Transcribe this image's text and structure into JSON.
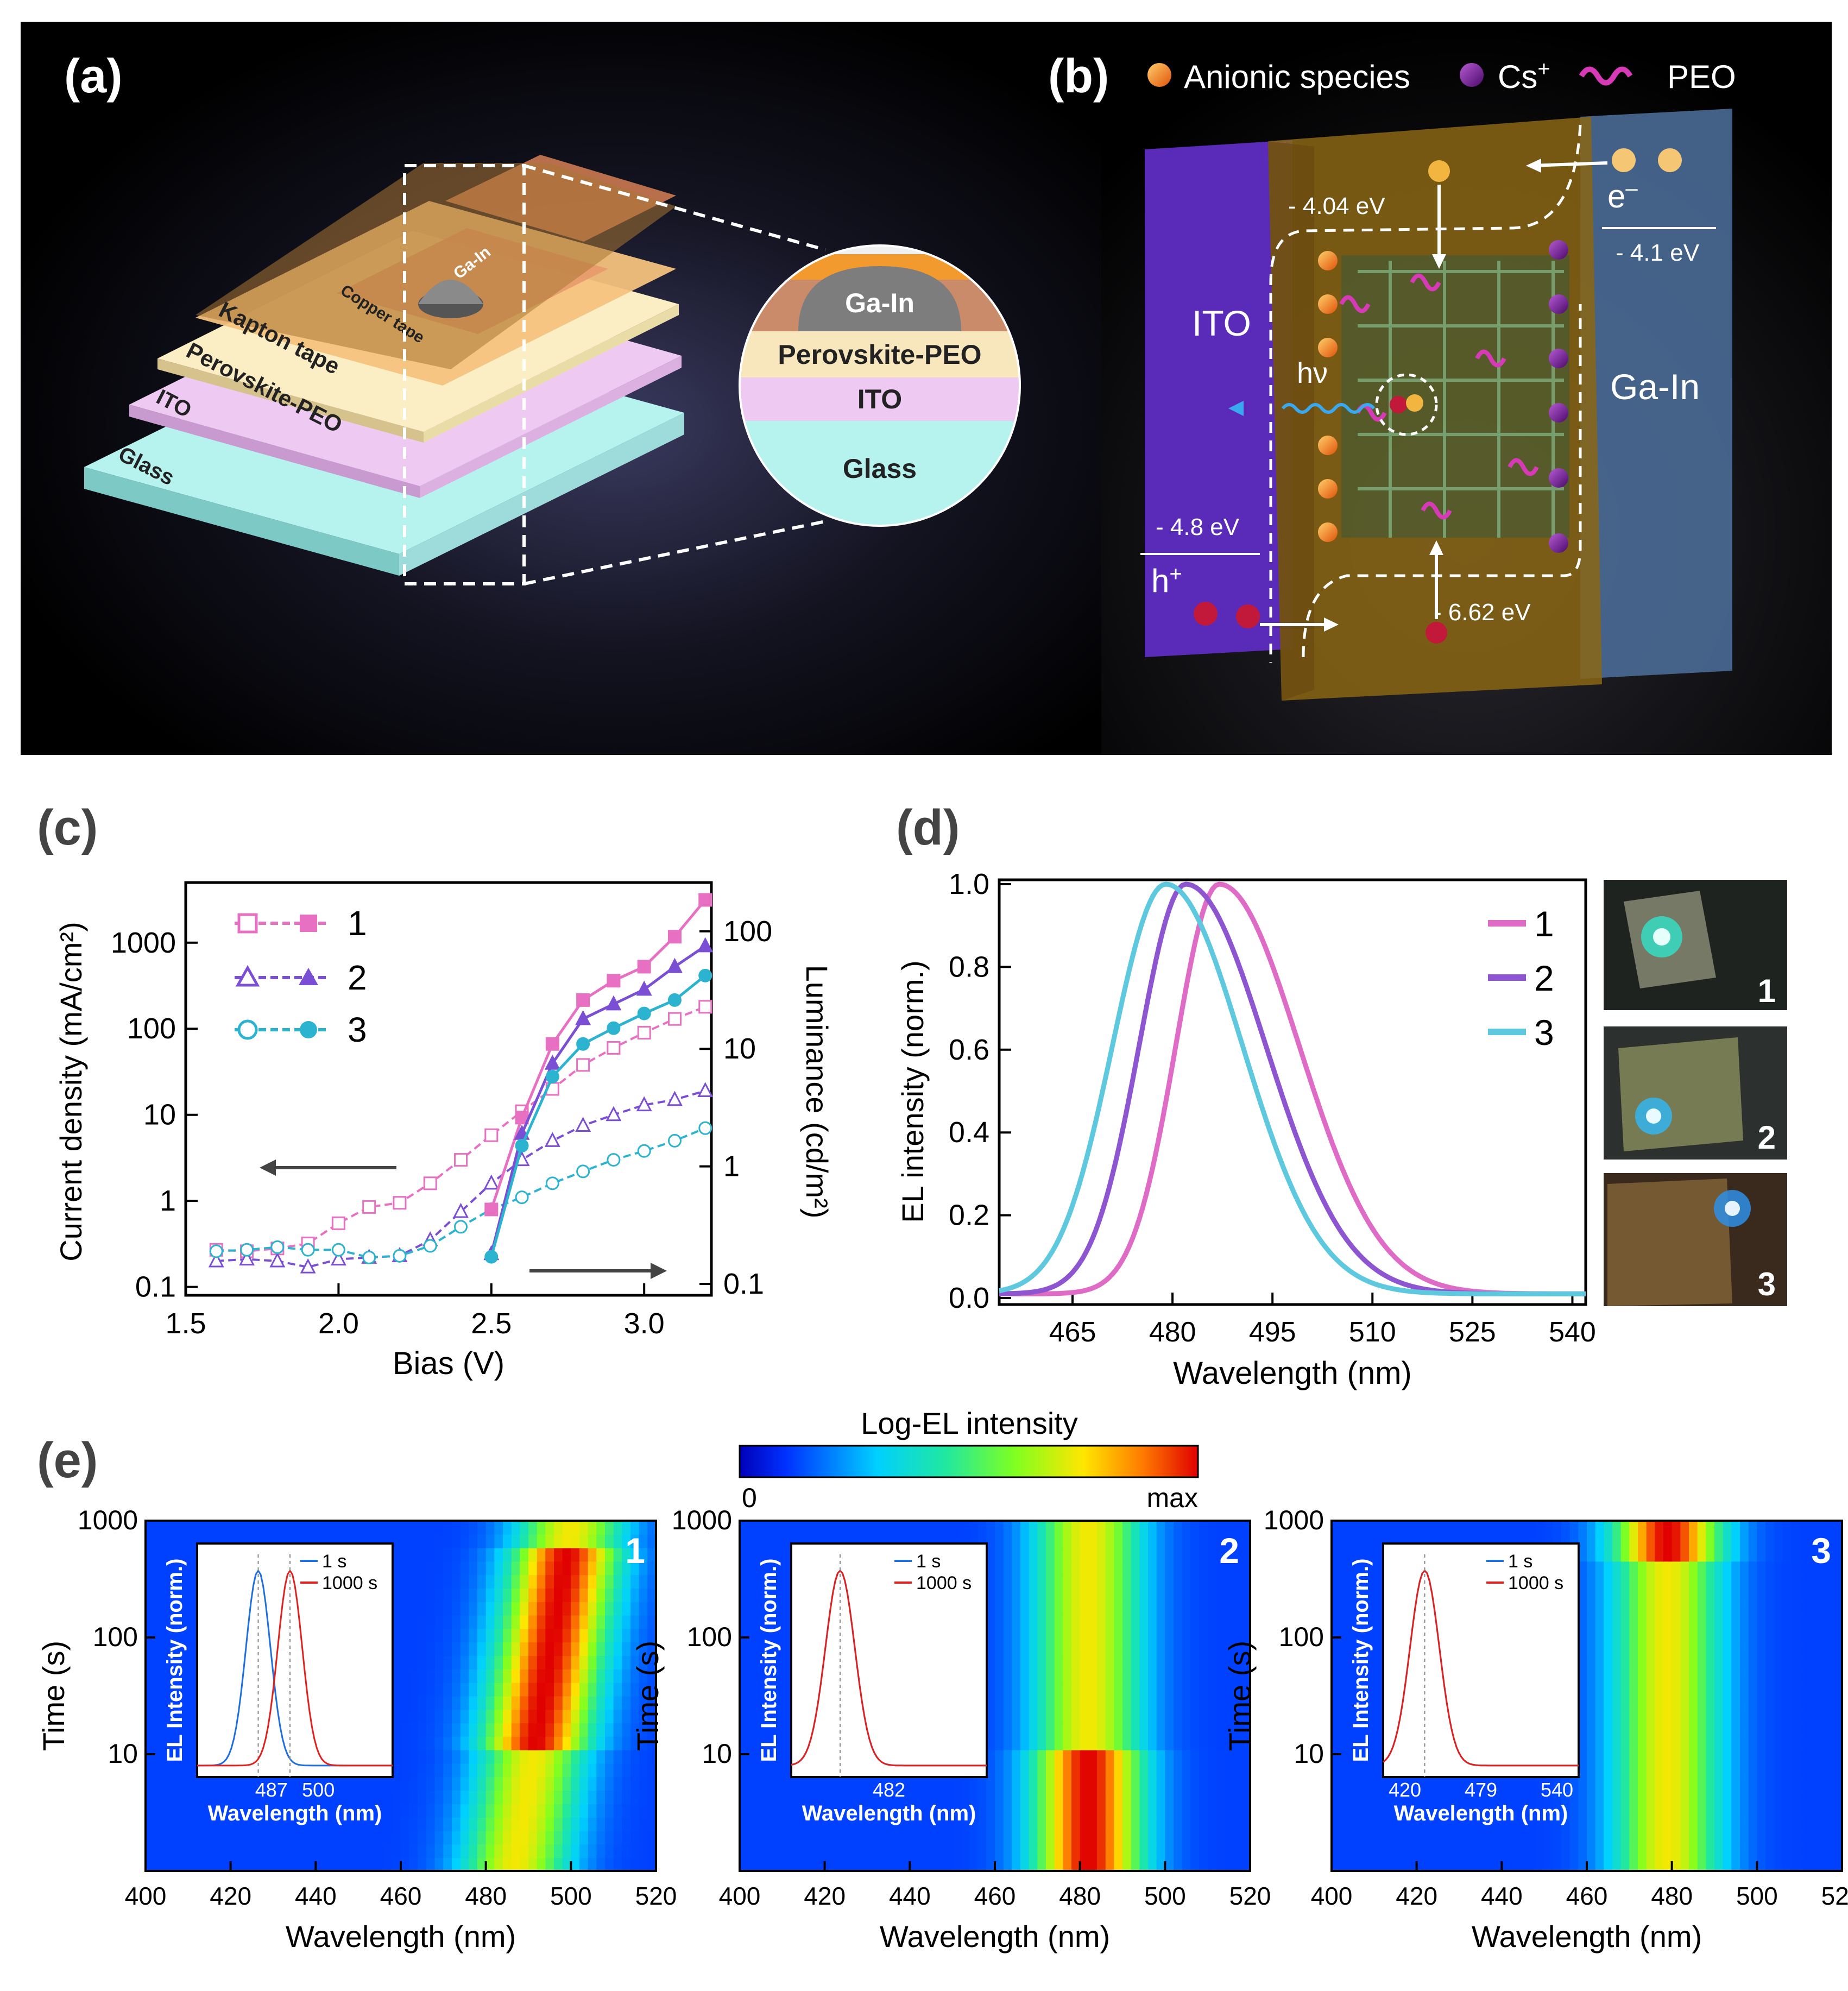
{
  "panels": {
    "a": {
      "label": "(a)",
      "layers": [
        "Glass",
        "ITO",
        "Perovskite-PEO",
        "Kapton tape",
        "Copper tape"
      ],
      "contact": "Ga-In",
      "zoom_layers": [
        "Ga-In",
        "Perovskite-PEO",
        "ITO",
        "Glass"
      ]
    },
    "b": {
      "label": "(b)",
      "legend": {
        "anionic": "Anionic species",
        "cs": "Cs",
        "cs_sup": "+",
        "peo": "PEO"
      },
      "ito": "ITO",
      "gain": "Ga-In",
      "lumo": "- 4.04 eV",
      "homo": "- 6.62 eV",
      "ito_wf": "- 4.8 eV",
      "gain_wf": "- 4.1 eV",
      "electron": "e",
      "electron_sup": "–",
      "hole": "h",
      "hole_sup": "+",
      "photon": "hν"
    },
    "c": {
      "label": "(c)"
    },
    "d": {
      "label": "(d)",
      "photo_labels": [
        "1",
        "2",
        "3"
      ]
    },
    "e": {
      "label": "(e)",
      "colorbar": {
        "title": "Log-EL intensity",
        "min": "0",
        "max": "max"
      },
      "maps": [
        {
          "id": "1",
          "inset_ticks": [
            "487",
            "500"
          ],
          "legend": [
            "1 s",
            "1000 s"
          ]
        },
        {
          "id": "2",
          "inset_ticks": [
            "482"
          ],
          "legend": [
            "1 s",
            "1000 s"
          ]
        },
        {
          "id": "3",
          "inset_ticks": [
            "420",
            "479",
            "540"
          ],
          "legend": [
            "1 s",
            "1000 s"
          ]
        }
      ],
      "inset_ylabel": "EL Intensity (norm.)",
      "inset_xlabel": "Wavelength (nm)",
      "xlabel": "Wavelength (nm)",
      "ylabel": "Time (s)",
      "xticks": [
        "400",
        "420",
        "440",
        "460",
        "480",
        "500",
        "520"
      ],
      "yticks": [
        "1000",
        "100",
        "10"
      ]
    }
  },
  "chart_data": [
    {
      "id": "c",
      "type": "line",
      "xlabel": "Bias (V)",
      "ylabel": "Current density (mA/cm²)",
      "y2label": "Luminance (cd/m²)",
      "xlim": [
        1.5,
        3.22
      ],
      "ylim": [
        0.08,
        5000
      ],
      "y2lim": [
        0.08,
        260
      ],
      "xticks": [
        "1.5",
        "2.0",
        "2.5",
        "3.0"
      ],
      "yticks": [
        "0.1",
        "1",
        "10",
        "100",
        "1000"
      ],
      "y2ticks": [
        "0.1",
        "1",
        "10",
        "100"
      ],
      "legend": [
        "1",
        "2",
        "3"
      ],
      "colors": [
        "#e870c2",
        "#7b4fd3",
        "#2cb3cf"
      ],
      "current_x": [
        1.6,
        1.7,
        1.8,
        1.9,
        2.0,
        2.1,
        2.2,
        2.3,
        2.4,
        2.5,
        2.6,
        2.7,
        2.8,
        2.9,
        3.0,
        3.1,
        3.2
      ],
      "current": [
        [
          0.27,
          0.26,
          0.28,
          0.32,
          0.55,
          0.85,
          0.95,
          1.6,
          3.0,
          5.8,
          11,
          20,
          38,
          60,
          90,
          130,
          180
        ],
        [
          0.2,
          0.21,
          0.2,
          0.17,
          0.21,
          0.22,
          0.23,
          0.35,
          0.75,
          1.6,
          3.0,
          5.0,
          7.5,
          10,
          13,
          15,
          19
        ],
        [
          0.26,
          0.27,
          0.29,
          0.27,
          0.27,
          0.22,
          0.23,
          0.3,
          0.5,
          0.8,
          1.1,
          1.6,
          2.2,
          3.0,
          3.8,
          5.0,
          7.0
        ]
      ],
      "luminance_x": [
        2.5,
        2.6,
        2.7,
        2.8,
        2.9,
        3.0,
        3.1,
        3.2
      ],
      "luminance": [
        [
          0.43,
          2.6,
          11.0,
          26,
          38,
          50,
          90,
          185
        ],
        [
          0.18,
          1.9,
          7.5,
          18,
          24,
          32,
          50,
          75
        ],
        [
          0.17,
          1.5,
          5.8,
          11,
          15,
          20,
          26,
          42
        ]
      ],
      "annotations": [
        "arrow pointing left (current axis)",
        "arrow pointing right (luminance axis)"
      ]
    },
    {
      "id": "d",
      "type": "line",
      "xlabel": "Wavelength (nm)",
      "ylabel": "EL intensity (norm.)",
      "xlim": [
        454,
        542
      ],
      "ylim": [
        0,
        1.0
      ],
      "xticks": [
        "465",
        "480",
        "495",
        "510",
        "525",
        "540"
      ],
      "yticks": [
        "0.0",
        "0.2",
        "0.4",
        "0.6",
        "0.8",
        "1.0"
      ],
      "legend": [
        "1",
        "2",
        "3"
      ],
      "colors": [
        "#de6cc6",
        "#8d55cf",
        "#5ec9de"
      ],
      "series": [
        {
          "name": "1",
          "peak": 487,
          "width_left": 6.5,
          "width_right": 12
        },
        {
          "name": "2",
          "peak": 482,
          "width_left": 7,
          "width_right": 12
        },
        {
          "name": "3",
          "peak": 479,
          "width_left": 8,
          "width_right": 11.5
        }
      ]
    },
    {
      "id": "e",
      "type": "heatmap",
      "xlabel": "Wavelength (nm)",
      "ylabel": "Time (s)",
      "xlim": [
        400,
        520
      ],
      "ylim": [
        1,
        1000
      ],
      "maps": [
        {
          "id": "1",
          "peak_start": 487,
          "peak_end": 500,
          "hot_time_range": [
            10,
            600
          ]
        },
        {
          "id": "2",
          "peak_start": 482,
          "peak_end": 482,
          "hot_time_range": [
            1,
            10
          ]
        },
        {
          "id": "3",
          "peak_start": 479,
          "peak_end": 479,
          "hot_time_range": [
            500,
            1000
          ]
        }
      ]
    }
  ]
}
